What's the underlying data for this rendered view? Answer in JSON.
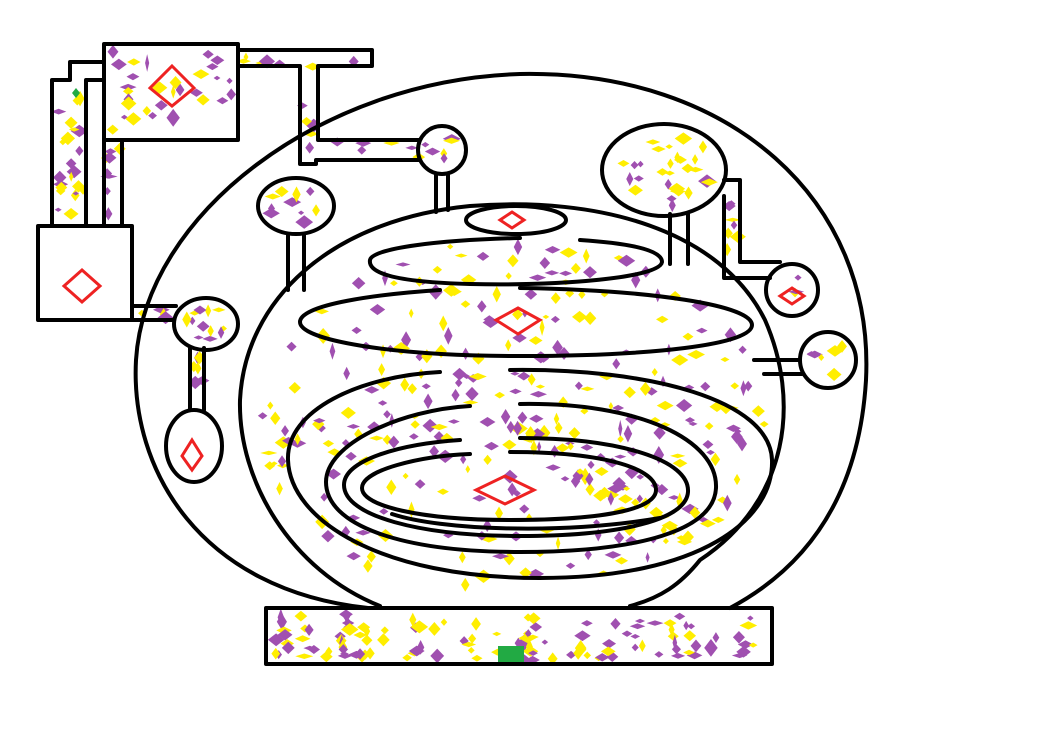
{
  "map": {
    "colors": {
      "background": "#ffffff",
      "wall": "#000000",
      "pellet_purple": "#a050b0",
      "pellet_yellow": "#ffee00",
      "goal_red": "#ee2222",
      "start_green": "#22aa44",
      "player_green": "#22aa44"
    },
    "rooms": [
      "outer-dome",
      "inner-sphere",
      "entry-chamber",
      "upper-left-room",
      "left-room",
      "left-junction",
      "lower-left-pod",
      "top-mid-pod",
      "left-upper-pod",
      "right-upper-room",
      "right-small-pod",
      "right-mid-pod"
    ],
    "goals": [
      "upper-left-room-diamond",
      "left-room-diamond",
      "lower-left-pod-diamond",
      "top-ring-diamond",
      "upper-ring-diamond",
      "core-diamond",
      "right-small-pod-diamond"
    ],
    "pickup_colors": [
      "purple",
      "yellow"
    ]
  }
}
